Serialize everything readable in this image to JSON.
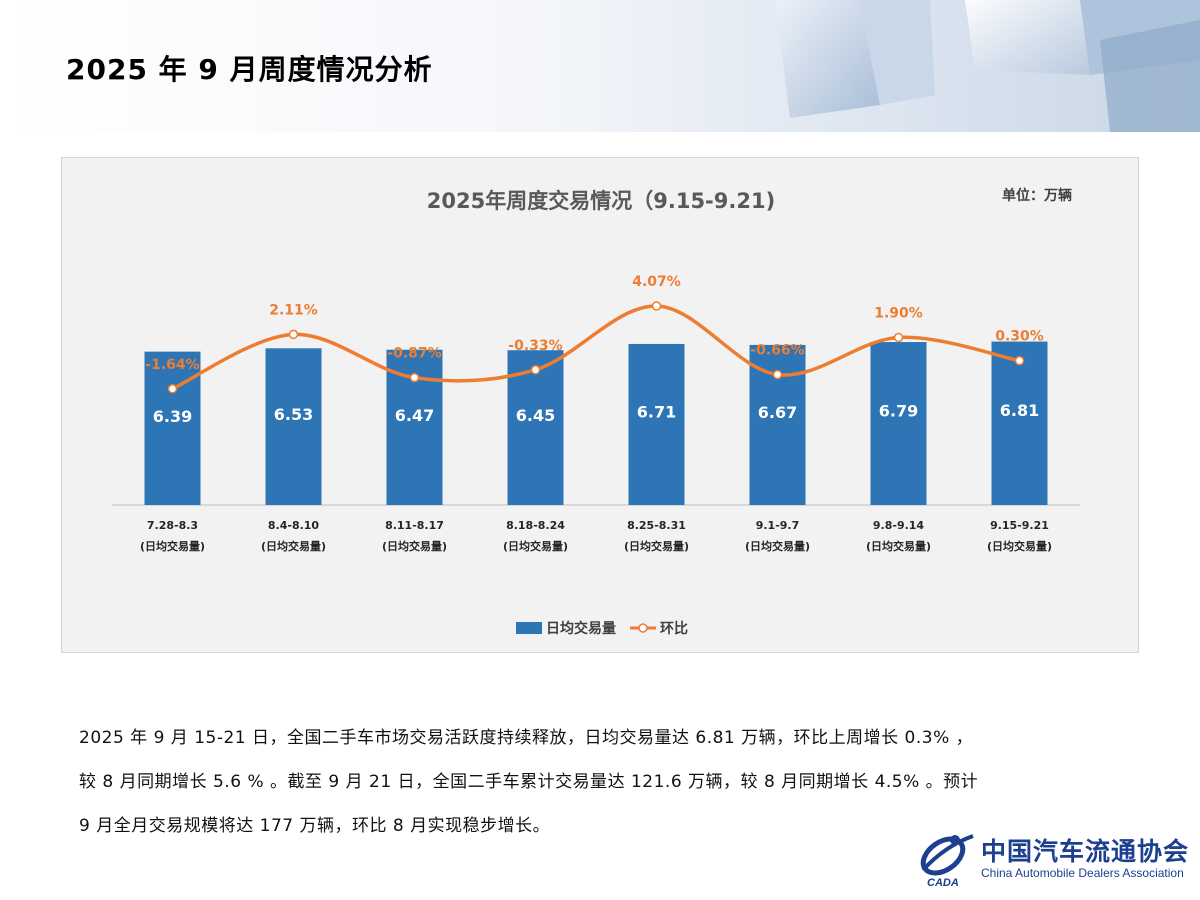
{
  "page": {
    "title": "2025 年 9 月周度情况分析"
  },
  "chart_data": {
    "type": "bar",
    "title": "2025年周度交易情况（9.15-9.21)",
    "unit_label": "单位：万辆",
    "categories": [
      [
        "7.28-8.3",
        "(日均交易量)"
      ],
      [
        "8.4-8.10",
        "(日均交易量)"
      ],
      [
        "8.11-8.17",
        "(日均交易量)"
      ],
      [
        "8.18-8.24",
        "(日均交易量)"
      ],
      [
        "8.25-8.31",
        "(日均交易量)"
      ],
      [
        "9.1-9.7",
        "(日均交易量)"
      ],
      [
        "9.8-9.14",
        "(日均交易量)"
      ],
      [
        "9.15-9.21",
        "(日均交易量)"
      ]
    ],
    "series": [
      {
        "name": "日均交易量",
        "type": "bar",
        "color": "#2e75b6",
        "values": [
          6.39,
          6.53,
          6.47,
          6.45,
          6.71,
          6.67,
          6.79,
          6.81
        ],
        "labels": [
          "6.39",
          "6.53",
          "6.47",
          "6.45",
          "6.71",
          "6.67",
          "6.79",
          "6.81"
        ]
      },
      {
        "name": "环比",
        "type": "line",
        "color": "#ed7d31",
        "values": [
          -1.64,
          2.11,
          -0.87,
          -0.33,
          4.07,
          -0.66,
          1.9,
          0.3
        ],
        "labels": [
          "-1.64%",
          "2.11%",
          "-0.87%",
          "-0.33%",
          "4.07%",
          "-0.66%",
          "1.90%",
          "0.30%"
        ]
      }
    ],
    "legend_position": "bottom",
    "grid": false
  },
  "body": {
    "lines": [
      "2025  年  9  月  15-21  日，全国二手车市场交易活跃度持续释放，日均交易量达  6.81  万辆，环比上周增长  0.3%  ，",
      "较  8  月同期增长  5.6 %  。截至  9  月  21  日，全国二手车累计交易量达  121.6  万辆，较  8  月同期增长  4.5%  。预计",
      "9  月全月交易规模将达  177  万辆，环比  8  月实现稳步增长。"
    ]
  },
  "logo": {
    "cn": "中国汽车流通协会",
    "en": "China Automobile Dealers Association",
    "mark_text": "CADA"
  }
}
